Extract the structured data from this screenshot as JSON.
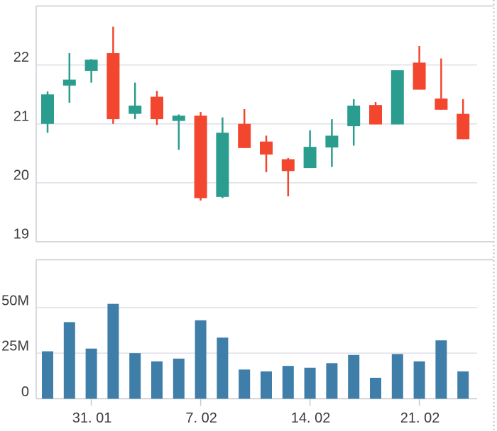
{
  "colors": {
    "up": "#2a9d8e",
    "down": "#f3462f",
    "volume_bar": "#3e7ea8",
    "grid_line": "#dedee6",
    "axis_line": "#c9c9d2",
    "tick_text": "#3c3c3c",
    "dotted_edge": "#bdbdc8",
    "background": "#ffffff"
  },
  "chart_data": [
    {
      "type": "candlestick",
      "pane": "price",
      "title": "",
      "xlabel": "",
      "ylabel": "",
      "grid": true,
      "legend_position": "none",
      "ylim": [
        19,
        23
      ],
      "y_tick_labels": [
        "22",
        "21",
        "20",
        "19"
      ],
      "y_tick_values": [
        22,
        21,
        20,
        19
      ],
      "x_tick_labels": [
        "31. 01",
        "7. 02",
        "14. 02",
        "21. 02"
      ],
      "x_tick_indices": [
        2,
        7,
        12,
        17
      ],
      "candles": [
        {
          "open": 21.0,
          "high": 21.55,
          "low": 20.85,
          "close": 21.5
        },
        {
          "open": 21.65,
          "high": 22.2,
          "low": 21.36,
          "close": 21.75
        },
        {
          "open": 21.9,
          "high": 22.1,
          "low": 21.7,
          "close": 22.09
        },
        {
          "open": 22.2,
          "high": 22.65,
          "low": 21.0,
          "close": 21.08
        },
        {
          "open": 21.17,
          "high": 21.7,
          "low": 21.08,
          "close": 21.31
        },
        {
          "open": 21.46,
          "high": 21.56,
          "low": 20.98,
          "close": 21.08
        },
        {
          "open": 21.05,
          "high": 21.16,
          "low": 20.56,
          "close": 21.14
        },
        {
          "open": 21.14,
          "high": 21.2,
          "low": 19.7,
          "close": 19.74
        },
        {
          "open": 19.76,
          "high": 21.11,
          "low": 19.74,
          "close": 20.85
        },
        {
          "open": 21.0,
          "high": 21.25,
          "low": 20.59,
          "close": 20.59
        },
        {
          "open": 20.7,
          "high": 20.8,
          "low": 20.18,
          "close": 20.48
        },
        {
          "open": 20.4,
          "high": 20.42,
          "low": 19.77,
          "close": 20.2
        },
        {
          "open": 20.25,
          "high": 20.89,
          "low": 20.25,
          "close": 20.61
        },
        {
          "open": 20.6,
          "high": 21.08,
          "low": 20.27,
          "close": 20.8
        },
        {
          "open": 20.96,
          "high": 21.42,
          "low": 20.63,
          "close": 21.31
        },
        {
          "open": 21.32,
          "high": 21.37,
          "low": 20.99,
          "close": 20.99
        },
        {
          "open": 20.99,
          "high": 21.91,
          "low": 20.99,
          "close": 21.91
        },
        {
          "open": 22.04,
          "high": 22.32,
          "low": 21.58,
          "close": 21.58
        },
        {
          "open": 21.43,
          "high": 22.11,
          "low": 21.24,
          "close": 21.24
        },
        {
          "open": 21.17,
          "high": 21.42,
          "low": 20.74,
          "close": 20.74
        }
      ]
    },
    {
      "type": "bar",
      "pane": "volume",
      "title": "",
      "xlabel": "",
      "ylabel": "",
      "grid": true,
      "legend_position": "none",
      "unit": "M",
      "ylim": [
        0,
        76
      ],
      "y_tick_labels": [
        "50M",
        "25M",
        "0"
      ],
      "y_tick_values": [
        50,
        25,
        0
      ],
      "values": [
        26,
        42,
        27.5,
        52,
        25,
        20.5,
        22,
        43,
        33.5,
        16,
        15,
        18,
        17,
        19.5,
        24,
        11.5,
        24.5,
        20.5,
        32,
        15
      ]
    }
  ]
}
